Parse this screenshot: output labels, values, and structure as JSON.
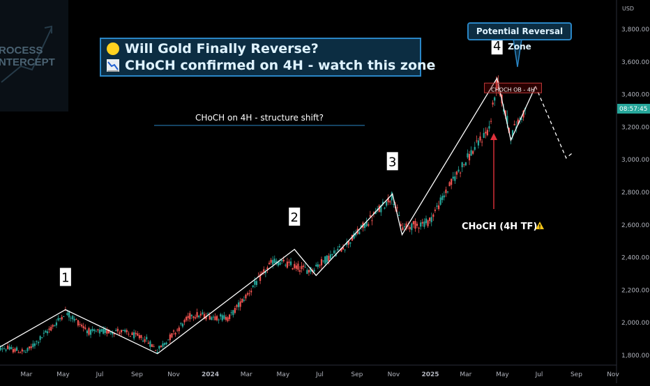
{
  "logo": {
    "line1": "ROCESS",
    "line2": "NTERCEPT"
  },
  "title": {
    "line1_icon": "yellow-circle-icon",
    "line1": "Will Gold Finally Reverse?",
    "line2_icon": "chart-decreasing-icon",
    "line2": "CHoCH confirmed on 4H - watch this zone"
  },
  "annotations": {
    "structure_shift": "CHoCH on 4H - structure shift?",
    "reversal_zone": "Potential Reversal Zone",
    "ob_box": "CHOCH OB - 4H",
    "choch_label": "CHoCH (4H TF)",
    "warning_icon": "warning-icon"
  },
  "price_tag": "08:57:45",
  "colors": {
    "up": "#26a69a",
    "down": "#ef5350",
    "accent": "#2a86c6",
    "arrow": "#e0313b"
  },
  "chart_data": {
    "type": "candlestick",
    "symbol": "Gold",
    "currency": "USD",
    "y_axis": {
      "label": "USD",
      "ylim": [
        1700,
        3900
      ],
      "ticks": [
        "1,800.00",
        "2,000.00",
        "2,200.00",
        "2,400.00",
        "2,600.00",
        "2,800.00",
        "3,000.00",
        "3,200.00",
        "3,400.00",
        "3,600.00",
        "3,800.00"
      ]
    },
    "x_axis": {
      "ticks": [
        "Mar",
        "May",
        "Jul",
        "Sep",
        "Nov",
        "2024",
        "Mar",
        "May",
        "Jul",
        "Sep",
        "Nov",
        "2025",
        "Mar",
        "May",
        "Jul",
        "Sep",
        "Nov"
      ]
    },
    "price_path": [
      {
        "x": "2023-01-15",
        "y": 1850
      },
      {
        "x": "2023-03-01",
        "y": 1820
      },
      {
        "x": "2023-04-20",
        "y": 2000
      },
      {
        "x": "2023-05-05",
        "y": 2070
      },
      {
        "x": "2023-06-15",
        "y": 1940
      },
      {
        "x": "2023-08-01",
        "y": 1950
      },
      {
        "x": "2023-09-15",
        "y": 1900
      },
      {
        "x": "2023-10-05",
        "y": 1830
      },
      {
        "x": "2023-12-01",
        "y": 2050
      },
      {
        "x": "2024-02-01",
        "y": 2030
      },
      {
        "x": "2024-04-15",
        "y": 2380
      },
      {
        "x": "2024-06-15",
        "y": 2320
      },
      {
        "x": "2024-08-15",
        "y": 2480
      },
      {
        "x": "2024-10-30",
        "y": 2780
      },
      {
        "x": "2024-11-15",
        "y": 2580
      },
      {
        "x": "2024-12-30",
        "y": 2620
      },
      {
        "x": "2025-02-15",
        "y": 2920
      },
      {
        "x": "2025-04-10",
        "y": 3200
      },
      {
        "x": "2025-04-22",
        "y": 3480
      },
      {
        "x": "2025-05-15",
        "y": 3150
      },
      {
        "x": "2025-06-10",
        "y": 3320
      }
    ],
    "swing_points": [
      {
        "label": "1",
        "x": "2023-05-05",
        "y": 2080
      },
      {
        "label": "2",
        "x": "2024-05-20",
        "y": 2450
      },
      {
        "label": "3",
        "x": "2024-10-30",
        "y": 2790
      },
      {
        "label": "4",
        "x": "2025-04-22",
        "y": 3500
      }
    ],
    "zigzag": [
      {
        "x": "2023-01-01",
        "y": 1820
      },
      {
        "x": "2023-05-05",
        "y": 2080
      },
      {
        "x": "2023-10-05",
        "y": 1810
      },
      {
        "x": "2024-05-20",
        "y": 2450
      },
      {
        "x": "2024-06-25",
        "y": 2290
      },
      {
        "x": "2024-10-30",
        "y": 2790
      },
      {
        "x": "2024-11-15",
        "y": 2540
      },
      {
        "x": "2025-04-22",
        "y": 3500
      },
      {
        "x": "2025-05-15",
        "y": 3120
      },
      {
        "x": "2025-06-25",
        "y": 3450
      }
    ],
    "projection": [
      {
        "x": "2025-06-25",
        "y": 3450
      },
      {
        "x": "2025-08-15",
        "y": 3010
      },
      {
        "x": "2025-08-25",
        "y": 3040
      }
    ],
    "ob_zone": {
      "x_start": "2025-04-01",
      "x_end": "2025-07-05",
      "y_low": 3410,
      "y_high": 3470
    }
  }
}
